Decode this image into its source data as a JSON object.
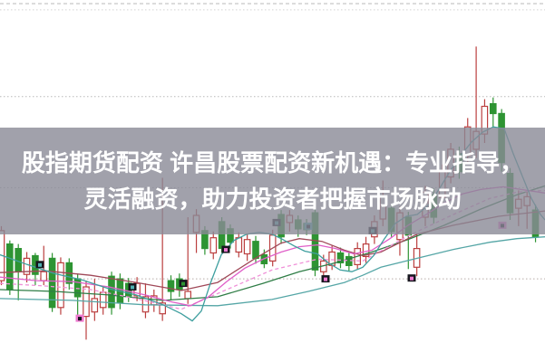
{
  "banner": {
    "line1": "股指期货配资 许昌股票配资新机遇：专业指导，",
    "line2": "灵活融资，助力投资者把握市场脉动",
    "background": "#8a8996",
    "text_color": "#ffffff"
  },
  "chart_data": {
    "type": "candlestick",
    "title": "",
    "xlabel": "",
    "ylabel": "",
    "ylim": [
      3207,
      3612
    ],
    "x_start": 1.5,
    "x_step": 9.35,
    "grid": "on",
    "legend_position": "none",
    "colors": {
      "up": "#bb3f3f",
      "down": "#2e9433"
    },
    "gridlines": [
      {
        "price": 3608,
        "style": "dashed",
        "color": "#b8b8b8"
      },
      {
        "price": 3601,
        "style": "dotted",
        "color": "#d2d2d2"
      },
      {
        "price": 3504,
        "style": "dotted",
        "color": "#b8b8b8"
      },
      {
        "price": 3402,
        "style": "dotted",
        "color": "#b8b8b8"
      },
      {
        "price": 3300,
        "style": "dotted",
        "color": "#b6aba6"
      }
    ],
    "candle_format": "[open, high, low, close]",
    "candles": [
      [
        3298,
        3359,
        3293,
        3354
      ],
      [
        3339,
        3343,
        3282,
        3288
      ],
      [
        3334,
        3339,
        3276,
        3308
      ],
      [
        3305,
        3330,
        3296,
        3323
      ],
      [
        3326,
        3329,
        3293,
        3305
      ],
      [
        3298,
        3337,
        3293,
        3308
      ],
      [
        3323,
        3329,
        3263,
        3268
      ],
      [
        3268,
        3324,
        3260,
        3318
      ],
      [
        3318,
        3323,
        3288,
        3295
      ],
      [
        3300,
        3306,
        3256,
        3280
      ],
      [
        3258,
        3298,
        3232,
        3291
      ],
      [
        3263,
        3300,
        3253,
        3278
      ],
      [
        3268,
        3292,
        3260,
        3285
      ],
      [
        3303,
        3308,
        3260,
        3268
      ],
      [
        3300,
        3306,
        3266,
        3273
      ],
      [
        3295,
        3301,
        3274,
        3281
      ],
      [
        3281,
        3302,
        3275,
        3295
      ],
      [
        3263,
        3295,
        3256,
        3280
      ],
      [
        3271,
        3288,
        3263,
        3281
      ],
      [
        3261,
        3413,
        3253,
        3273
      ],
      [
        3298,
        3304,
        3276,
        3286
      ],
      [
        3300,
        3306,
        3280,
        3288
      ],
      [
        3278,
        3369,
        3272,
        3286
      ],
      [
        3352,
        3378,
        3329,
        3371
      ],
      [
        3354,
        3359,
        3327,
        3334
      ],
      [
        3329,
        3353,
        3322,
        3346
      ],
      [
        3364,
        3369,
        3329,
        3334
      ],
      [
        3356,
        3361,
        3334,
        3341
      ],
      [
        3330,
        3352,
        3324,
        3346
      ],
      [
        3328,
        3350,
        3320,
        3344
      ],
      [
        3342,
        3348,
        3317,
        3323
      ],
      [
        3327,
        3333,
        3312,
        3317
      ],
      [
        3320,
        3355,
        3314,
        3349
      ],
      [
        3372,
        3377,
        3339,
        3347
      ],
      [
        3363,
        3377,
        3353,
        3371
      ],
      [
        3366,
        3371,
        3347,
        3356
      ],
      [
        3362,
        3367,
        3349,
        3355
      ],
      [
        3374,
        3379,
        3303,
        3310
      ],
      [
        3308,
        3327,
        3300,
        3320
      ],
      [
        3315,
        3337,
        3310,
        3330
      ],
      [
        3329,
        3335,
        3312,
        3318
      ],
      [
        3325,
        3331,
        3309,
        3315
      ],
      [
        3316,
        3341,
        3311,
        3334
      ],
      [
        3325,
        3347,
        3318,
        3339
      ],
      [
        3347,
        3371,
        3339,
        3364
      ],
      [
        3367,
        3410,
        3359,
        3392
      ],
      [
        3379,
        3384,
        3347,
        3353
      ],
      [
        3344,
        3381,
        3326,
        3374
      ],
      [
        3369,
        3375,
        3311,
        3349
      ],
      [
        3313,
        3351,
        3303,
        3334
      ],
      [
        3369,
        3404,
        3359,
        3397
      ],
      [
        3394,
        3401,
        3362,
        3369
      ],
      [
        3391,
        3428,
        3384,
        3420
      ],
      [
        3414,
        3452,
        3407,
        3445
      ],
      [
        3440,
        3448,
        3412,
        3420
      ],
      [
        3438,
        3480,
        3430,
        3470
      ],
      [
        3445,
        3560,
        3435,
        3465
      ],
      [
        3462,
        3501,
        3452,
        3493
      ],
      [
        3496,
        3503,
        3470,
        3485
      ],
      [
        3485,
        3490,
        3420,
        3430
      ],
      [
        3418,
        3424,
        3366,
        3374
      ],
      [
        3379,
        3399,
        3359,
        3389
      ],
      [
        3382,
        3399,
        3356,
        3392
      ],
      [
        3377,
        3383,
        3341,
        3347
      ]
    ],
    "moving_averages": [
      {
        "name": "ma-slow-teal",
        "color": "#55a6a6",
        "dashed": false,
        "points": [
          [
            0,
            3278
          ],
          [
            80,
            3276
          ],
          [
            160,
            3271
          ],
          [
            240,
            3270
          ],
          [
            300,
            3277
          ],
          [
            340,
            3286
          ],
          [
            380,
            3296
          ],
          [
            400,
            3304
          ],
          [
            420,
            3313
          ],
          [
            460,
            3323
          ],
          [
            500,
            3333
          ],
          [
            540,
            3341
          ],
          [
            570,
            3345
          ],
          [
            601,
            3347
          ]
        ]
      },
      {
        "name": "ma-dark-green",
        "color": "#2f7d46",
        "dashed": false,
        "points": [
          [
            0,
            3288
          ],
          [
            60,
            3286
          ],
          [
            120,
            3282
          ],
          [
            180,
            3276
          ],
          [
            240,
            3280
          ],
          [
            290,
            3295
          ],
          [
            330,
            3308
          ],
          [
            370,
            3318
          ],
          [
            410,
            3330
          ],
          [
            450,
            3344
          ],
          [
            490,
            3360
          ],
          [
            530,
            3378
          ],
          [
            570,
            3394
          ],
          [
            601,
            3404
          ]
        ]
      },
      {
        "name": "ma-maroon",
        "color": "#a04858",
        "dashed": false,
        "points": [
          [
            0,
            3307
          ],
          [
            50,
            3309
          ],
          [
            100,
            3304
          ],
          [
            150,
            3296
          ],
          [
            200,
            3287
          ],
          [
            240,
            3296
          ],
          [
            280,
            3322
          ],
          [
            310,
            3340
          ],
          [
            330,
            3345
          ],
          [
            355,
            3342
          ],
          [
            380,
            3332
          ],
          [
            400,
            3326
          ],
          [
            420,
            3330
          ],
          [
            440,
            3340
          ],
          [
            460,
            3350
          ],
          [
            500,
            3360
          ],
          [
            550,
            3370
          ],
          [
            601,
            3376
          ]
        ]
      },
      {
        "name": "ma-pink-dashed",
        "color": "#f090d8",
        "dashed": true,
        "points": [
          [
            0,
            3295
          ],
          [
            50,
            3292
          ],
          [
            100,
            3288
          ],
          [
            150,
            3278
          ],
          [
            200,
            3266
          ],
          [
            250,
            3288
          ],
          [
            300,
            3310
          ],
          [
            350,
            3322
          ],
          [
            400,
            3320
          ],
          [
            450,
            3348
          ],
          [
            500,
            3372
          ],
          [
            540,
            3390
          ],
          [
            570,
            3397
          ],
          [
            601,
            3399
          ]
        ]
      },
      {
        "name": "ma-magenta",
        "color": "#e05fc8",
        "dashed": false,
        "points": [
          [
            0,
            3302
          ],
          [
            40,
            3298
          ],
          [
            80,
            3297
          ],
          [
            120,
            3291
          ],
          [
            160,
            3282
          ],
          [
            190,
            3274
          ],
          [
            210,
            3270
          ],
          [
            230,
            3280
          ],
          [
            250,
            3297
          ],
          [
            270,
            3312
          ],
          [
            290,
            3322
          ],
          [
            310,
            3330
          ],
          [
            330,
            3336
          ],
          [
            350,
            3338
          ],
          [
            370,
            3334
          ],
          [
            390,
            3328
          ],
          [
            410,
            3332
          ],
          [
            430,
            3345
          ],
          [
            450,
            3360
          ],
          [
            470,
            3372
          ],
          [
            490,
            3385
          ],
          [
            510,
            3395
          ],
          [
            530,
            3400
          ],
          [
            555,
            3403
          ],
          [
            601,
            3396
          ]
        ]
      },
      {
        "name": "ma-fast-teal",
        "color": "#3f9f9f",
        "dashed": false,
        "points": [
          [
            0,
            3327
          ],
          [
            30,
            3316
          ],
          [
            60,
            3306
          ],
          [
            90,
            3299
          ],
          [
            120,
            3289
          ],
          [
            150,
            3282
          ],
          [
            180,
            3271
          ],
          [
            200,
            3261
          ],
          [
            212,
            3253
          ],
          [
            222,
            3264
          ],
          [
            232,
            3295
          ],
          [
            244,
            3327
          ],
          [
            258,
            3343
          ],
          [
            272,
            3350
          ],
          [
            286,
            3352
          ],
          [
            300,
            3350
          ],
          [
            312,
            3344
          ],
          [
            324,
            3337
          ],
          [
            336,
            3331
          ],
          [
            350,
            3328
          ],
          [
            362,
            3318
          ],
          [
            375,
            3310
          ],
          [
            388,
            3308
          ],
          [
            400,
            3313
          ],
          [
            412,
            3326
          ],
          [
            424,
            3345
          ],
          [
            436,
            3362
          ],
          [
            448,
            3370
          ],
          [
            460,
            3372
          ],
          [
            472,
            3382
          ],
          [
            484,
            3400
          ],
          [
            496,
            3420
          ],
          [
            508,
            3438
          ],
          [
            520,
            3453
          ],
          [
            532,
            3464
          ],
          [
            544,
            3470
          ],
          [
            556,
            3468
          ],
          [
            566,
            3440
          ],
          [
            576,
            3415
          ],
          [
            586,
            3390
          ],
          [
            596,
            3372
          ],
          [
            601,
            3366
          ]
        ]
      }
    ],
    "marker_colors": {
      "black": "#16161e",
      "teal": "#4fb0b0",
      "pink": "#ee7ad0",
      "green": "#2e9433"
    },
    "markers": [
      {
        "x": 44,
        "price": 3316,
        "base": "black",
        "accent": "teal"
      },
      {
        "x": 88,
        "price": 3256,
        "base": "pink",
        "accent": "black"
      },
      {
        "x": 146,
        "price": 3291,
        "base": "black",
        "accent": "teal"
      },
      {
        "x": 202,
        "price": 3295,
        "base": "black",
        "accent": "green"
      },
      {
        "x": 249,
        "price": 3333,
        "base": "black",
        "accent": "pink"
      },
      {
        "x": 305,
        "price": 3363,
        "base": "black",
        "accent": "teal"
      },
      {
        "x": 340,
        "price": 3359,
        "base": "teal",
        "accent": "black"
      },
      {
        "x": 359,
        "price": 3300,
        "base": "black",
        "accent": "pink"
      },
      {
        "x": 411,
        "price": 3354,
        "base": "black",
        "accent": "teal"
      },
      {
        "x": 454,
        "price": 3301,
        "base": "black",
        "accent": "pink"
      },
      {
        "x": 554,
        "price": 3360,
        "base": "pink",
        "accent": "black"
      }
    ]
  }
}
